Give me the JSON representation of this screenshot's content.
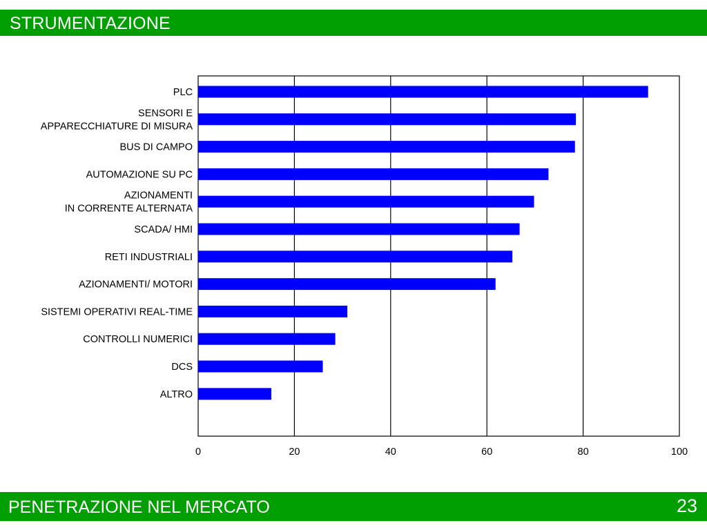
{
  "header": {
    "title": "STRUMENTAZIONE"
  },
  "footer": {
    "title": "PENETRAZIONE NEL MERCATO",
    "page_number": "23"
  },
  "colors": {
    "bar_fill": "#0000ff",
    "band": "#009e00",
    "band_text": "#ffffff"
  },
  "chart_data": {
    "type": "bar",
    "orientation": "horizontal",
    "title": "",
    "xlabel": "",
    "ylabel": "",
    "xlim": [
      0,
      100
    ],
    "x_ticks": [
      0,
      20,
      40,
      60,
      80,
      100
    ],
    "grid": "vertical lines at 20, 40, 60, 80",
    "categories": [
      [
        "PLC"
      ],
      [
        "SENSORI E",
        "APPARECCHIATURE DI MISURA"
      ],
      [
        "BUS DI CAMPO"
      ],
      [
        "AUTOMAZIONE SU PC"
      ],
      [
        "AZIONAMENTI",
        "IN CORRENTE ALTERNATA"
      ],
      [
        "SCADA/ HMI"
      ],
      [
        "RETI INDUSTRIALI"
      ],
      [
        "AZIONAMENTI/ MOTORI"
      ],
      [
        "SISTEMI OPERATIVI REAL-TIME"
      ],
      [
        "CONTROLLI NUMERICI"
      ],
      [
        "DCS"
      ],
      [
        "ALTRO"
      ]
    ],
    "values": [
      93.5,
      78.5,
      78.3,
      72.8,
      69.8,
      66.8,
      65.3,
      61.8,
      31,
      28.5,
      25.9,
      15.2
    ]
  }
}
